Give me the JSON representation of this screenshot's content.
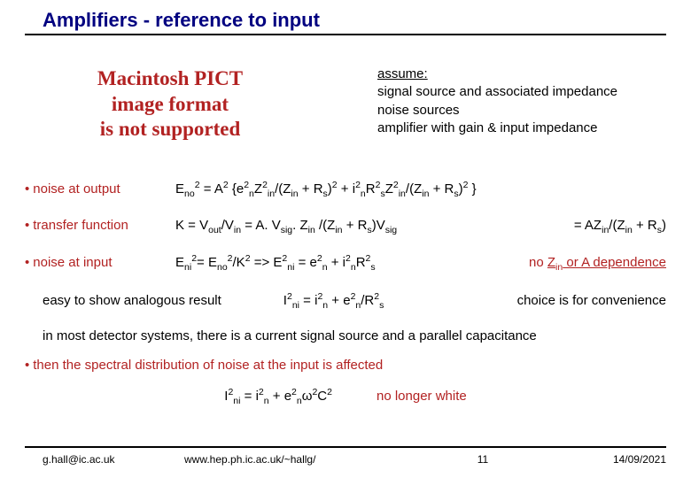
{
  "title": "Amplifiers - reference to input",
  "pict_placeholder": {
    "line1": "Macintosh PICT",
    "line2": "image format",
    "line3": "is not supported",
    "text_color": "#b22222"
  },
  "assume": {
    "head": "assume:",
    "l1": "signal source and associated impedance",
    "l2": "noise sources",
    "l3": "amplifier with gain & input impedance"
  },
  "rows": {
    "noise_out": {
      "label": "noise at output",
      "eq": "E<sub>no</sub><sup>2</sup> = A<sup>2</sup> {e<sup>2</sup><sub>n</sub>Z<sup>2</sup><sub>in</sub>/(Z<sub>in</sub> + R<sub>s</sub>)<sup>2</sup> + i<sup>2</sup><sub>n</sub>R<sup>2</sup><sub>s</sub>Z<sup>2</sup><sub>in</sub>/(Z<sub>in</sub> + R<sub>s</sub>)<sup>2</sup> }"
    },
    "transfer": {
      "label": "transfer function",
      "eq": "K = V<sub>out</sub>/V<sub>in</sub>  =  A. V<sub>sig</sub>. Z<sub>in</sub> /(Z<sub>in</sub> + R<sub>s</sub>)V<sub>sig</sub>",
      "note": "= AZ<sub>in</sub>/(Z<sub>in</sub> + R<sub>s</sub>)"
    },
    "noise_in": {
      "label": "noise at input",
      "eq": "E<sub>ni</sub><sup>2</sup>= E<sub>no</sub><sup>2</sup>/K<sup>2</sup>   =>  E<sup>2</sup><sub>ni</sub> = e<sup>2</sup><sub>n</sub> + i<sup>2</sup><sub>n</sub>R<sup>2</sup><sub>s</sub>",
      "note": "no <span class=\"u\">Z<sub>in</sub> or A dependence</span>"
    }
  },
  "analogous": {
    "lead": "easy to show analogous result",
    "eq": "I<sup>2</sup><sub>ni</sub> = i<sup>2</sup><sub>n</sub> + e<sup>2</sup><sub>n</sub>/R<sup>2</sup><sub>s</sub>",
    "note": "choice is for convenience"
  },
  "detector_line": "in most detector systems, there is a current signal source and a parallel capacitance",
  "spectral": {
    "label": "then the spectral distribution of noise at the input is affected",
    "eq": "I<sup>2</sup><sub>ni</sub> = i<sup>2</sup><sub>n</sub> + e<sup>2</sup><sub>n</sub>ω<sup>2</sup>C<sup>2</sup>",
    "note": "no longer white"
  },
  "footer": {
    "email": "g.hall@ic.ac.uk",
    "url": "www.hep.ph.ic.ac.uk/~hallg/",
    "page": "11",
    "date": "14/09/2021"
  },
  "colors": {
    "title": "#000080",
    "accent": "#b22222",
    "rule": "#000000",
    "bg": "#ffffff"
  }
}
